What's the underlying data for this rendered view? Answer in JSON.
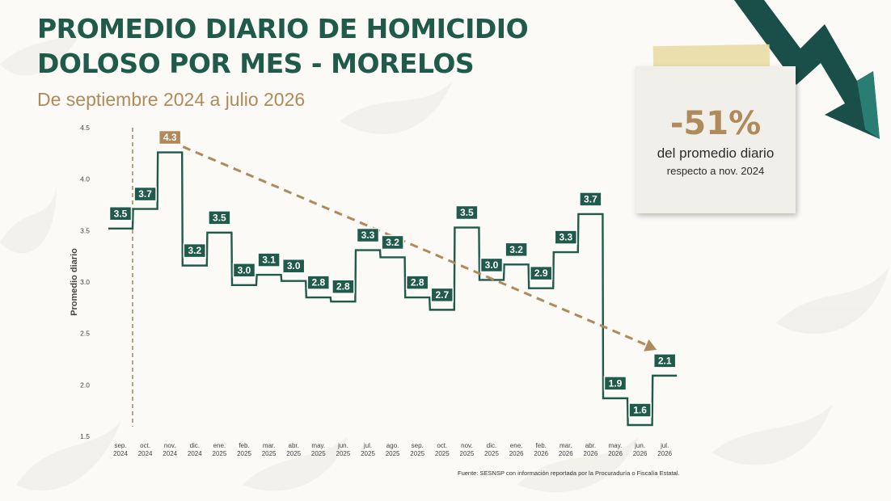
{
  "title_line1": "PROMEDIO DIARIO DE HOMICIDIO",
  "title_line2": "DOLOSO POR MES - MORELOS",
  "subtitle": "De septiembre 2024 a julio 2026",
  "note": {
    "percent": "-51%",
    "line1": "del promedio diario",
    "line2": "respecto a nov. 2024"
  },
  "source": "Fuente: SESNSP con información reportada por la Procuraduría o Fiscalía Estatal.",
  "colors": {
    "primary": "#1f5a4a",
    "accent": "#b08a5a",
    "arrow": "#1a4e48"
  },
  "icons": {
    "arrow": "down-right-trend-arrow-icon"
  },
  "chart_data": {
    "type": "line",
    "style": "step",
    "ylabel": "Promedio diario",
    "ylim": [
      1.5,
      4.5
    ],
    "yticks": [
      "1.5",
      "2.0",
      "2.5",
      "3.0",
      "3.5",
      "4.0",
      "4.5"
    ],
    "categories": [
      [
        "sep.",
        "2024"
      ],
      [
        "oct.",
        "2024"
      ],
      [
        "nov.",
        "2024"
      ],
      [
        "dic.",
        "2024"
      ],
      [
        "ene.",
        "2025"
      ],
      [
        "feb.",
        "2025"
      ],
      [
        "mar.",
        "2025"
      ],
      [
        "abr.",
        "2025"
      ],
      [
        "may.",
        "2025"
      ],
      [
        "jun.",
        "2025"
      ],
      [
        "jul.",
        "2025"
      ],
      [
        "ago.",
        "2025"
      ],
      [
        "sep.",
        "2025"
      ],
      [
        "oct.",
        "2025"
      ],
      [
        "nov.",
        "2025"
      ],
      [
        "dic.",
        "2025"
      ],
      [
        "ene.",
        "2026"
      ],
      [
        "feb.",
        "2026"
      ],
      [
        "mar.",
        "2026"
      ],
      [
        "abr.",
        "2026"
      ],
      [
        "may.",
        "2026"
      ],
      [
        "jun.",
        "2026"
      ],
      [
        "jul.",
        "2026"
      ]
    ],
    "values": [
      3.52,
      3.71,
      4.26,
      3.16,
      3.48,
      2.97,
      3.07,
      3.01,
      2.85,
      2.81,
      3.31,
      3.24,
      2.85,
      2.73,
      3.53,
      3.02,
      3.17,
      2.94,
      3.29,
      3.66,
      1.87,
      1.61,
      2.09
    ],
    "data_labels": [
      "3.5",
      "3.7",
      "4.3",
      "3.2",
      "3.5",
      "3.0",
      "3.1",
      "3.0",
      "2.8",
      "2.8",
      "3.3",
      "3.2",
      "2.8",
      "2.7",
      "3.5",
      "3.0",
      "3.2",
      "2.9",
      "3.3",
      "3.7",
      "1.9",
      "1.6",
      "2.1"
    ],
    "trend": {
      "from_index": 2,
      "to_index": 22
    },
    "reference_line_index": 0,
    "grid": false,
    "legend": "none"
  }
}
